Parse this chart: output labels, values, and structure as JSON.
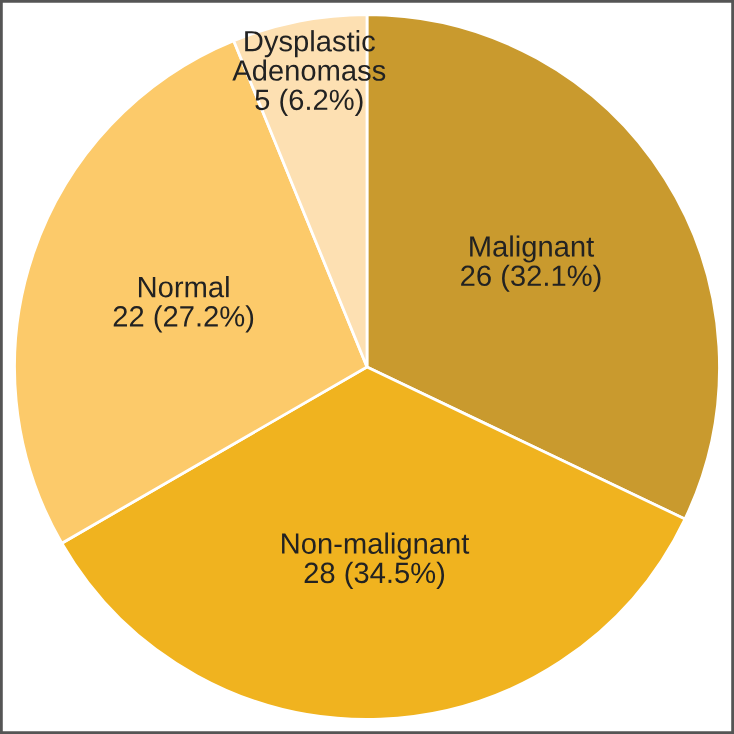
{
  "chart_data": {
    "type": "pie",
    "categories": [
      "Malignant",
      "Non-malignant",
      "Normal",
      "Dysplastic\nAdenomass"
    ],
    "values": [
      26,
      28,
      22,
      5
    ],
    "value_labels": [
      "26 (32.1%)",
      "28 (34.5%)",
      "22 (27.2%)",
      "5 (6.2%)"
    ],
    "colors": [
      "#c99a2e",
      "#f0b31f",
      "#fcca6a",
      "#fde0b2"
    ],
    "legend": false
  }
}
